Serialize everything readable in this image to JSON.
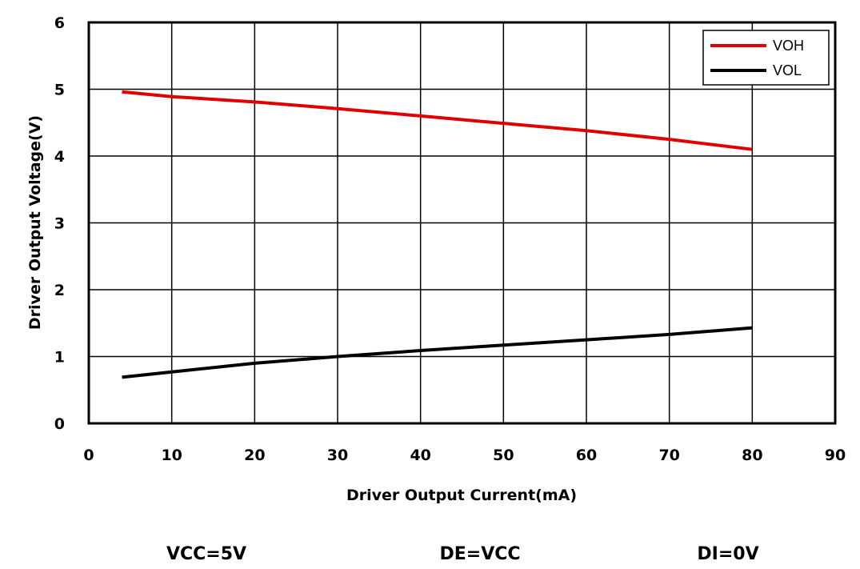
{
  "chart_data": {
    "type": "line",
    "xlabel": "Driver Output Current(mA)",
    "ylabel": "Driver Output Voltage(V)",
    "xlim": [
      0,
      90
    ],
    "ylim": [
      0,
      6
    ],
    "xticks": [
      "0",
      "10",
      "20",
      "30",
      "40",
      "50",
      "60",
      "70",
      "80",
      "90"
    ],
    "yticks": [
      "0",
      "1",
      "2",
      "3",
      "4",
      "5",
      "6"
    ],
    "grid": true,
    "legend_position": "top-right",
    "series": [
      {
        "name": "VOH",
        "color": "#e00000",
        "x": [
          4,
          10,
          20,
          30,
          40,
          50,
          60,
          70,
          80
        ],
        "y": [
          4.96,
          4.89,
          4.81,
          4.71,
          4.6,
          4.49,
          4.38,
          4.25,
          4.1
        ]
      },
      {
        "name": "VOL",
        "color": "#000000",
        "x": [
          4,
          10,
          20,
          30,
          40,
          50,
          60,
          70,
          80
        ],
        "y": [
          0.69,
          0.77,
          0.9,
          1.0,
          1.09,
          1.17,
          1.25,
          1.33,
          1.43
        ]
      }
    ]
  },
  "conditions": [
    "VCC=5V",
    "DE=VCC",
    "DI=0V"
  ]
}
